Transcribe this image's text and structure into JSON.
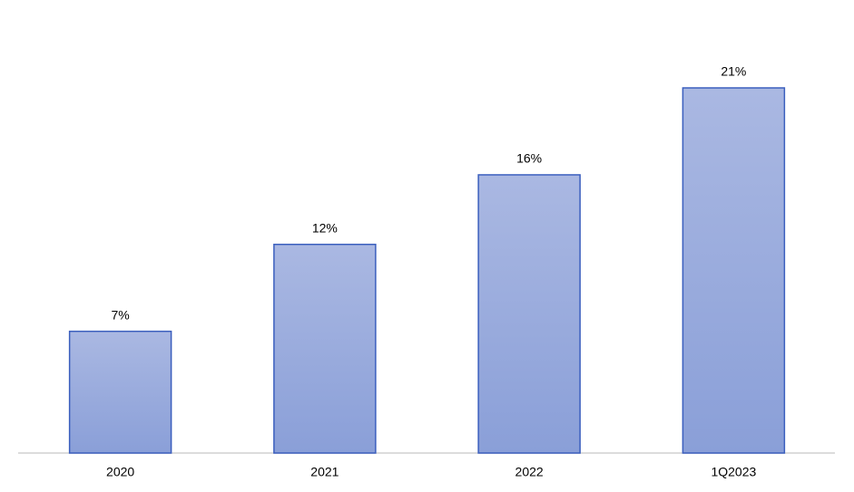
{
  "chart_data": {
    "type": "bar",
    "categories": [
      "2020",
      "2021",
      "2022",
      "1Q2023"
    ],
    "values": [
      7,
      12,
      16,
      21
    ],
    "value_labels": [
      "7%",
      "12%",
      "16%",
      "21%"
    ],
    "color": "#8fa3d9"
  }
}
